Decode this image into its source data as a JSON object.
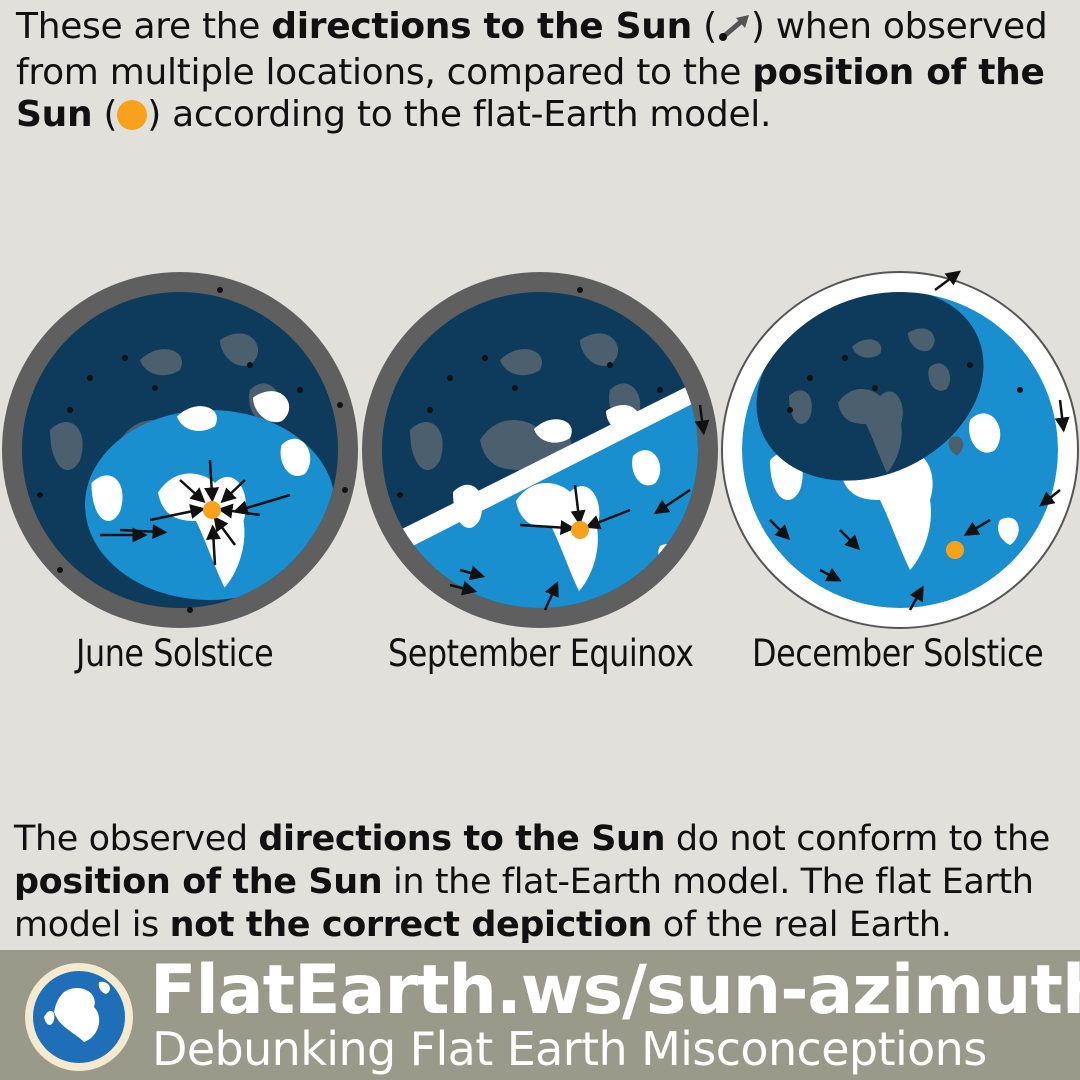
{
  "intro": {
    "p1": "These are the ",
    "b1": "directions to the Sun",
    "p2": " (",
    "p3": ") when observed from multiple locations, compared to the ",
    "b2": "position of the Sun",
    "p4": " (",
    "p5": ") according to the flat-Earth model."
  },
  "globes": [
    {
      "label": "June Solstice"
    },
    {
      "label": "September Equinox"
    },
    {
      "label": "December Solstice"
    }
  ],
  "conclusion": {
    "p1": "The observed ",
    "b1": "directions to the Sun",
    "p2": " do not conform to the ",
    "b2": "position of the Sun",
    "p3": " in the flat-Earth model. The flat Earth model is ",
    "b3": "not the correct depiction",
    "p4": " of the real Earth."
  },
  "footer": {
    "site": "FlatEarth.ws/sun-azimuth",
    "tagline": "Debunking Flat Earth Misconceptions"
  },
  "colors": {
    "background": "#e1e0da",
    "night": "#0e3a5c",
    "ocean": "#1a8fd0",
    "land": "#ffffff",
    "rim": "#5f5f5f",
    "sun": "#f7a21a",
    "footer": "#9a9a8a"
  }
}
